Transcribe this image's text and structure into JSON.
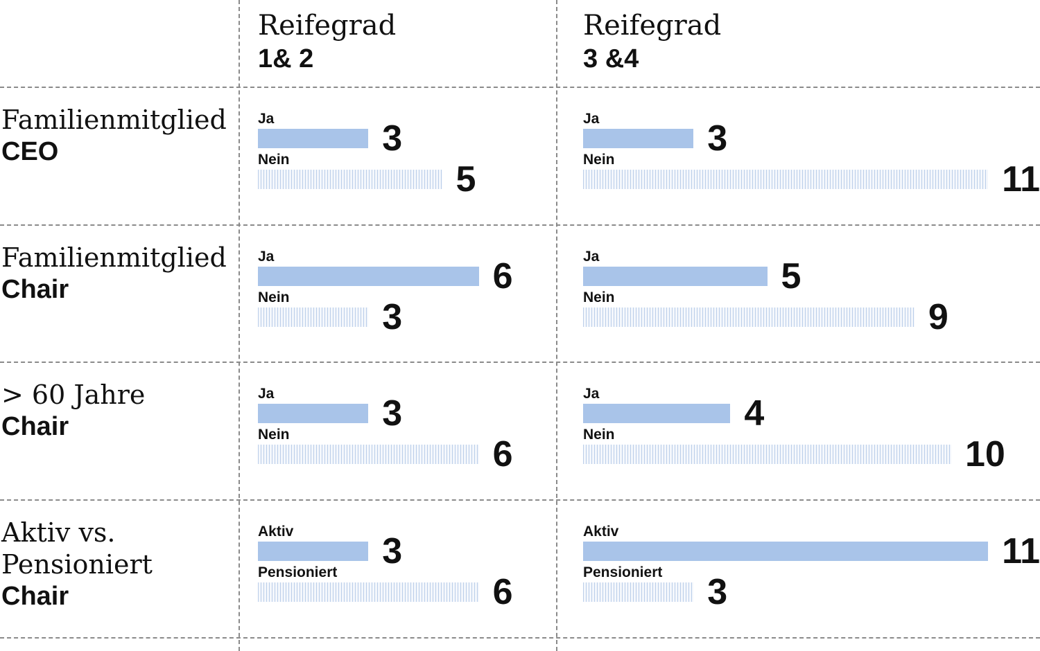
{
  "chart_data": {
    "type": "bar",
    "orientation": "horizontal",
    "layout": "small-multiples",
    "columns": [
      {
        "line1": "Reifegrad",
        "line2": "1& 2"
      },
      {
        "line1": "Reifegrad",
        "line2": "3 &4"
      }
    ],
    "rows": [
      {
        "label_serif": "Familienmitglied",
        "label_bold": "CEO",
        "panels": [
          {
            "bars": [
              {
                "label": "Ja",
                "value": 3,
                "style": "solid"
              },
              {
                "label": "Nein",
                "value": 5,
                "style": "hatched"
              }
            ]
          },
          {
            "bars": [
              {
                "label": "Ja",
                "value": 3,
                "style": "solid"
              },
              {
                "label": "Nein",
                "value": 11,
                "style": "hatched"
              }
            ]
          }
        ]
      },
      {
        "label_serif": "Familienmitglied",
        "label_bold": "Chair",
        "panels": [
          {
            "bars": [
              {
                "label": "Ja",
                "value": 6,
                "style": "solid"
              },
              {
                "label": "Nein",
                "value": 3,
                "style": "hatched"
              }
            ]
          },
          {
            "bars": [
              {
                "label": "Ja",
                "value": 5,
                "style": "solid"
              },
              {
                "label": "Nein",
                "value": 9,
                "style": "hatched"
              }
            ]
          }
        ]
      },
      {
        "label_serif": "> 60 Jahre",
        "label_bold": "Chair",
        "panels": [
          {
            "bars": [
              {
                "label": "Ja",
                "value": 3,
                "style": "solid"
              },
              {
                "label": "Nein",
                "value": 6,
                "style": "hatched"
              }
            ]
          },
          {
            "bars": [
              {
                "label": "Ja",
                "value": 4,
                "style": "solid"
              },
              {
                "label": "Nein",
                "value": 10,
                "style": "hatched"
              }
            ]
          }
        ]
      },
      {
        "label_serif": "Aktiv vs.\nPensioniert",
        "label_bold": "Chair",
        "panels": [
          {
            "bars": [
              {
                "label": "Aktiv",
                "value": 3,
                "style": "solid"
              },
              {
                "label": "Pensioniert",
                "value": 6,
                "style": "hatched"
              }
            ]
          },
          {
            "bars": [
              {
                "label": "Aktiv",
                "value": 11,
                "style": "solid"
              },
              {
                "label": "Pensioniert",
                "value": 3,
                "style": "hatched"
              }
            ]
          }
        ]
      }
    ],
    "colors": {
      "solid": "#a9c4e9",
      "hatched": "#b9cde9"
    },
    "grid": "dashed"
  }
}
